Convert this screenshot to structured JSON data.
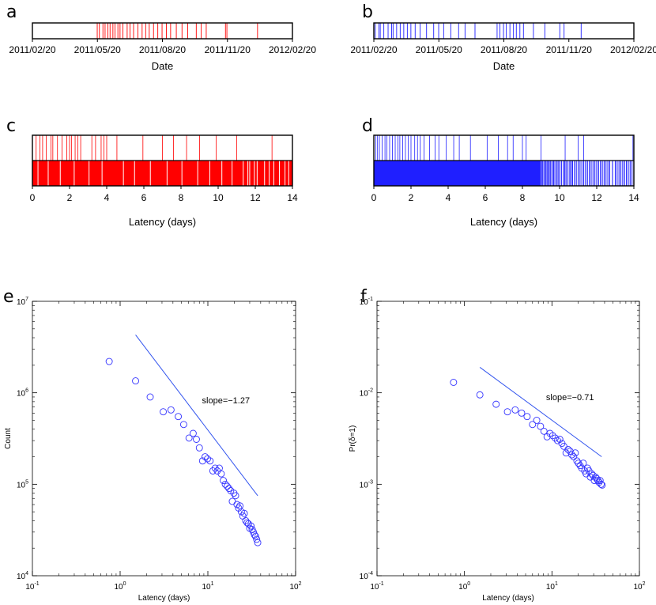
{
  "colors": {
    "red": "#ff0000",
    "blue": "#1f1fff",
    "marker": "#3333ff",
    "fit": "#3355ee"
  },
  "chart_data": [
    {
      "id": "a",
      "type": "event-raster",
      "panel_label": "a",
      "xlabel": "Date",
      "x_range": [
        "2011-02-20",
        "2012-02-20"
      ],
      "tick_labels": [
        "2011/02/20",
        "2011/05/20",
        "2011/08/20",
        "2011/11/20",
        "2012/02/20"
      ],
      "color": "#ff0000",
      "events": [
        "2011-05-22",
        "2011-05-25",
        "2011-05-30",
        "2011-06-02",
        "2011-06-06",
        "2011-06-09",
        "2011-06-13",
        "2011-06-16",
        "2011-06-20",
        "2011-06-23",
        "2011-06-27",
        "2011-07-03",
        "2011-07-07",
        "2011-07-12",
        "2011-07-18",
        "2011-07-24",
        "2011-07-29",
        "2011-08-03",
        "2011-08-09",
        "2011-08-15",
        "2011-08-21",
        "2011-08-27",
        "2011-09-02",
        "2011-09-10",
        "2011-09-18",
        "2011-09-26",
        "2011-10-08",
        "2011-10-15",
        "2011-10-22",
        "2011-11-18",
        "2011-11-20",
        "2012-01-02"
      ]
    },
    {
      "id": "b",
      "type": "event-raster",
      "panel_label": "b",
      "xlabel": "Date",
      "x_range": [
        "2011-02-20",
        "2012-02-20"
      ],
      "tick_labels": [
        "2011/02/20",
        "2011/05/20",
        "2011/08/20",
        "2011/11/20",
        "2012/02/20"
      ],
      "color": "#1f1fff",
      "events": [
        "2011-02-22",
        "2011-02-27",
        "2011-03-01",
        "2011-03-06",
        "2011-03-12",
        "2011-03-17",
        "2011-03-19",
        "2011-03-24",
        "2011-03-29",
        "2011-04-03",
        "2011-04-08",
        "2011-04-13",
        "2011-04-19",
        "2011-04-26",
        "2011-05-05",
        "2011-05-15",
        "2011-05-22",
        "2011-05-29",
        "2011-06-08",
        "2011-06-19",
        "2011-06-28",
        "2011-07-12",
        "2011-08-12",
        "2011-08-16",
        "2011-08-21",
        "2011-08-25",
        "2011-08-30",
        "2011-09-04",
        "2011-09-08",
        "2011-09-13",
        "2011-09-18",
        "2011-10-02",
        "2011-10-18",
        "2011-11-08",
        "2011-11-14",
        "2011-12-08"
      ]
    },
    {
      "id": "c",
      "type": "event-raster",
      "panel_label": "c",
      "xlabel": "Latency (days)",
      "xlim": [
        0,
        14
      ],
      "xticks": [
        0,
        2,
        4,
        6,
        8,
        10,
        12,
        14
      ],
      "color": "#ff0000",
      "top_events": [
        0.2,
        0.4,
        0.55,
        0.75,
        1.0,
        1.1,
        1.35,
        1.6,
        1.85,
        2.0,
        2.1,
        2.3,
        2.45,
        2.6,
        3.2,
        3.4,
        3.7,
        3.85,
        4.0,
        4.55,
        5.95,
        7.0,
        7.6,
        8.3,
        9.0,
        9.9,
        11.0,
        12.9
      ],
      "bottom_fill": [
        [
          0,
          14
        ]
      ],
      "bottom_gaps": [
        0.3,
        0.85,
        1.5,
        2.25,
        3.05,
        3.75,
        4.9,
        5.5,
        6.35,
        7.25,
        8.05,
        8.9,
        9.55,
        10.2,
        10.75,
        11.35,
        11.6,
        11.7,
        11.95,
        12.1,
        12.5,
        12.75,
        13.0,
        13.3,
        13.6,
        13.8
      ]
    },
    {
      "id": "d",
      "type": "event-raster",
      "panel_label": "d",
      "xlabel": "Latency (days)",
      "xlim": [
        0,
        14
      ],
      "xticks": [
        0,
        2,
        4,
        6,
        8,
        10,
        12,
        14
      ],
      "color": "#1f1fff",
      "top_events": [
        0.1,
        0.2,
        0.3,
        0.45,
        0.6,
        0.7,
        0.85,
        1.0,
        1.15,
        1.3,
        1.4,
        1.55,
        1.7,
        1.85,
        2.0,
        2.2,
        2.35,
        2.5,
        2.7,
        3.0,
        3.3,
        3.5,
        3.9,
        4.3,
        4.6,
        5.2,
        6.1,
        6.7,
        7.2,
        7.5,
        8.0,
        8.2,
        9.0,
        10.3,
        11.0,
        11.3,
        13.95
      ],
      "bottom_fill": [
        [
          0,
          9.0
        ]
      ],
      "bottom_tail": [
        9.05,
        9.1,
        9.18,
        9.25,
        9.32,
        9.38,
        9.45,
        9.52,
        9.6,
        9.68,
        9.75,
        9.85,
        9.92,
        10.0,
        10.1,
        10.2,
        10.28,
        10.35,
        10.45,
        10.55,
        10.62,
        10.7,
        10.8,
        10.9,
        11.0,
        11.1,
        11.2,
        11.3,
        11.4,
        11.5,
        11.6,
        11.7,
        11.8,
        11.9,
        12.0,
        12.1,
        12.2,
        12.3,
        12.4,
        12.5,
        12.6,
        12.7,
        12.85,
        13.0,
        13.1,
        13.2,
        13.3,
        13.4,
        13.5,
        13.6,
        13.7,
        13.8,
        13.9,
        14.0
      ]
    },
    {
      "id": "e",
      "type": "scatter",
      "panel_label": "e",
      "xscale": "log",
      "yscale": "log",
      "xlabel": "Latency (days)",
      "ylabel": "Count",
      "xlim": [
        0.1,
        100
      ],
      "ylim": [
        10000,
        10000000
      ],
      "x_decades": [
        -1,
        0,
        1,
        2
      ],
      "y_decades": [
        4,
        5,
        6,
        7
      ],
      "annotation": "slope=−1.27",
      "fit_line": [
        [
          1.5,
          4300000
        ],
        [
          37,
          75000
        ]
      ],
      "x": [
        0.75,
        1.5,
        2.2,
        3.1,
        3.8,
        4.6,
        5.3,
        6.1,
        6.8,
        7.4,
        8.0,
        8.7,
        9.3,
        9.9,
        10.6,
        11.4,
        12.1,
        12.8,
        13.5,
        14.2,
        15.0,
        15.8,
        16.6,
        17.4,
        18.2,
        19.0,
        19.8,
        20.7,
        21.5,
        22.4,
        23.2,
        24.1,
        25.0,
        26.0,
        27.0,
        28.0,
        29.0,
        30.0,
        31.0,
        32.0,
        33.0,
        34.0,
        35.0,
        36.0,
        37.0
      ],
      "y": [
        2200000,
        1350000,
        900000,
        620000,
        650000,
        550000,
        450000,
        320000,
        360000,
        310000,
        250000,
        180000,
        200000,
        190000,
        180000,
        140000,
        150000,
        140000,
        150000,
        130000,
        110000,
        100000,
        95000,
        90000,
        85000,
        65000,
        80000,
        75000,
        60000,
        55000,
        58000,
        50000,
        45000,
        48000,
        40000,
        38000,
        37000,
        33000,
        35000,
        32000,
        30000,
        28000,
        27000,
        25000,
        23000
      ]
    },
    {
      "id": "f",
      "type": "scatter",
      "panel_label": "f",
      "xscale": "log",
      "yscale": "log",
      "xlabel": "Latency (days)",
      "ylabel": "Pr(δ=1)",
      "xlim": [
        0.1,
        100
      ],
      "ylim": [
        0.0001,
        0.1
      ],
      "x_decades": [
        -1,
        0,
        1,
        2
      ],
      "y_decades": [
        -4,
        -3,
        -2,
        -1
      ],
      "annotation": "slope=−0.71",
      "fit_line": [
        [
          1.5,
          0.019
        ],
        [
          37,
          0.002
        ]
      ],
      "x": [
        0.75,
        1.5,
        2.3,
        3.1,
        3.8,
        4.5,
        5.2,
        6.0,
        6.7,
        7.4,
        8.1,
        8.8,
        9.5,
        10.2,
        10.9,
        11.6,
        12.3,
        13.0,
        13.7,
        14.5,
        15.3,
        16.1,
        16.9,
        17.7,
        18.5,
        19.3,
        20.1,
        21.0,
        21.9,
        22.8,
        23.7,
        24.6,
        25.5,
        26.5,
        27.5,
        28.5,
        29.5,
        30.5,
        31.5,
        32.5,
        33.5,
        34.5,
        35.5,
        36.5,
        37.5
      ],
      "y": [
        0.013,
        0.0095,
        0.0075,
        0.0062,
        0.0065,
        0.006,
        0.0055,
        0.0045,
        0.005,
        0.0043,
        0.0038,
        0.0033,
        0.0036,
        0.0034,
        0.0032,
        0.003,
        0.0031,
        0.0028,
        0.0026,
        0.0022,
        0.0024,
        0.0023,
        0.0021,
        0.002,
        0.0022,
        0.0018,
        0.0017,
        0.0016,
        0.0015,
        0.0017,
        0.0014,
        0.0013,
        0.0015,
        0.0014,
        0.0012,
        0.0013,
        0.00125,
        0.0011,
        0.0012,
        0.00115,
        0.0011,
        0.00105,
        0.0011,
        0.001,
        0.00098
      ]
    }
  ]
}
